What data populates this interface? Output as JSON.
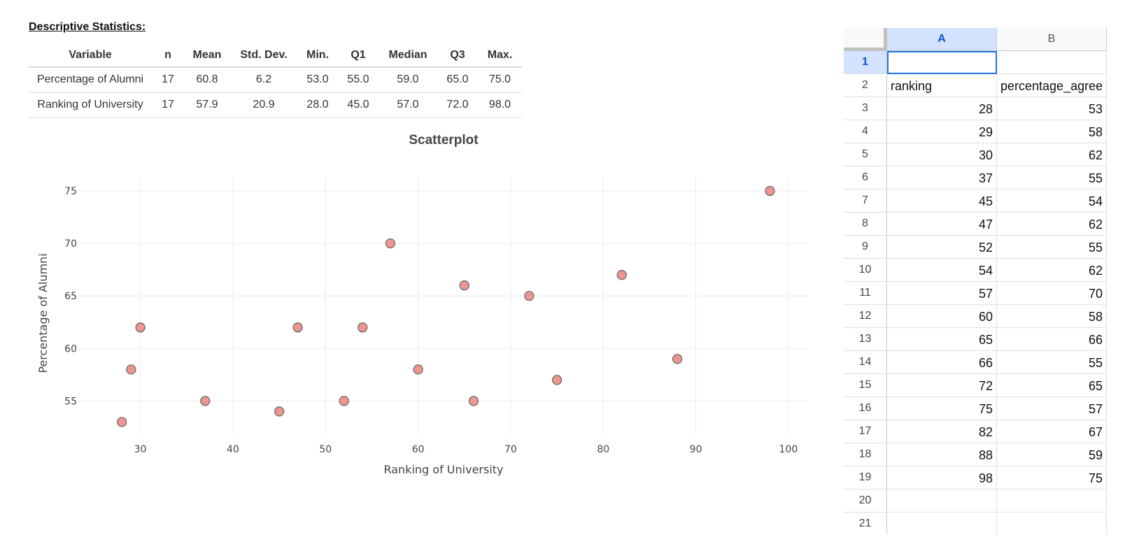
{
  "descriptive_title": "Descriptive Statistics:",
  "stats_table": {
    "headers": [
      "Variable",
      "n",
      "Mean",
      "Std. Dev.",
      "Min.",
      "Q1",
      "Median",
      "Q3",
      "Max."
    ],
    "rows": [
      [
        "Percentage of Alumni",
        "17",
        "60.8",
        "6.2",
        "53.0",
        "55.0",
        "59.0",
        "65.0",
        "75.0"
      ],
      [
        "Ranking of University",
        "17",
        "57.9",
        "20.9",
        "28.0",
        "45.0",
        "57.0",
        "72.0",
        "98.0"
      ]
    ]
  },
  "chart_data": {
    "type": "scatter",
    "title": "Scatterplot",
    "xlabel": "Ranking of University",
    "ylabel": "Percentage of Alumni",
    "x": [
      28,
      29,
      30,
      37,
      45,
      47,
      52,
      54,
      57,
      60,
      65,
      66,
      72,
      75,
      82,
      88,
      98
    ],
    "y": [
      53,
      58,
      62,
      55,
      54,
      62,
      55,
      62,
      70,
      58,
      66,
      55,
      65,
      57,
      67,
      59,
      75
    ],
    "xticks": [
      30,
      40,
      50,
      60,
      70,
      80,
      90,
      100
    ],
    "yticks": [
      55,
      60,
      65,
      70,
      75
    ],
    "xlim": [
      23.3,
      102.2
    ],
    "ylim": [
      51.9,
      76.4
    ],
    "grid": true,
    "marker_color": "#ee9590",
    "marker_edge_color": "#6b6b6b"
  },
  "spreadsheet": {
    "columns": [
      "A",
      "B"
    ],
    "selected_column": "A",
    "selected_row": "1",
    "row_numbers": [
      "1",
      "2",
      "3",
      "4",
      "5",
      "6",
      "7",
      "8",
      "9",
      "10",
      "11",
      "12",
      "13",
      "14",
      "15",
      "16",
      "17",
      "18",
      "19",
      "20",
      "21"
    ],
    "rows": [
      [
        "",
        ""
      ],
      [
        "ranking",
        "percentage_agree"
      ],
      [
        "28",
        "53"
      ],
      [
        "29",
        "58"
      ],
      [
        "30",
        "62"
      ],
      [
        "37",
        "55"
      ],
      [
        "45",
        "54"
      ],
      [
        "47",
        "62"
      ],
      [
        "52",
        "55"
      ],
      [
        "54",
        "62"
      ],
      [
        "57",
        "70"
      ],
      [
        "60",
        "58"
      ],
      [
        "65",
        "66"
      ],
      [
        "66",
        "55"
      ],
      [
        "72",
        "65"
      ],
      [
        "75",
        "57"
      ],
      [
        "82",
        "67"
      ],
      [
        "88",
        "59"
      ],
      [
        "98",
        "75"
      ],
      [
        "",
        ""
      ],
      [
        "",
        ""
      ]
    ],
    "selection_color": "#1a73e8",
    "header_highlight": "#d3e3fd"
  }
}
